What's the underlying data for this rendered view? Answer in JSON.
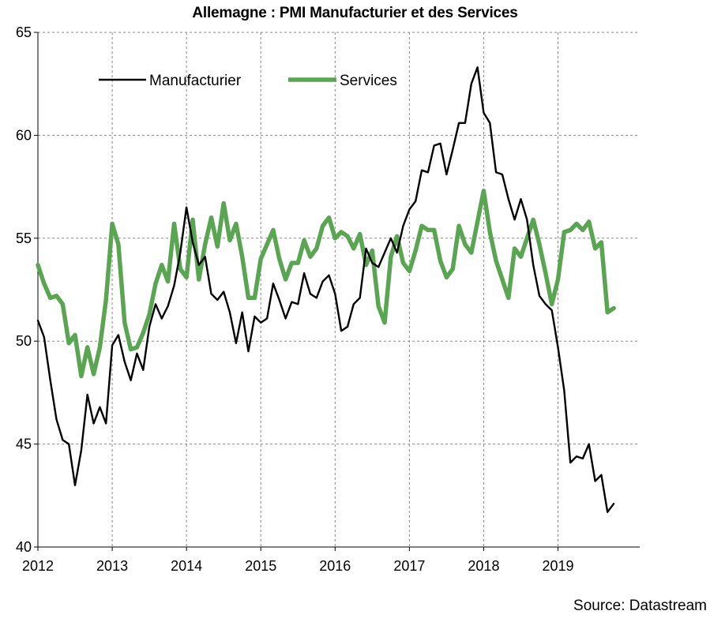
{
  "chart_data": {
    "type": "line",
    "title": "Allemagne : PMI Manufacturier et des Services",
    "source": "Source: Datastream",
    "xlabel": "",
    "ylabel": "",
    "ylim": [
      40,
      65
    ],
    "xlim": [
      2012,
      2020.1
    ],
    "y_ticks": [
      "40",
      "45",
      "50",
      "55",
      "60",
      "65"
    ],
    "x_ticks": [
      "2012",
      "2013",
      "2014",
      "2015",
      "2016",
      "2017",
      "2018",
      "2019"
    ],
    "grid": true,
    "legend_position": "top-left",
    "series": [
      {
        "name": "Manufacturier",
        "color": "#000000",
        "values": [
          51.0,
          50.2,
          48.1,
          46.2,
          45.2,
          45.0,
          43.0,
          44.7,
          47.4,
          46.0,
          46.8,
          46.0,
          49.8,
          50.3,
          49.0,
          48.1,
          49.4,
          48.6,
          50.7,
          51.8,
          51.1,
          51.7,
          52.7,
          54.3,
          56.5,
          54.8,
          53.7,
          54.1,
          52.3,
          52.0,
          52.4,
          51.4,
          49.9,
          51.4,
          49.5,
          51.2,
          50.9,
          51.1,
          52.8,
          52.0,
          51.1,
          51.9,
          51.8,
          53.3,
          52.3,
          52.1,
          52.9,
          53.2,
          52.3,
          50.5,
          50.7,
          51.8,
          52.1,
          54.5,
          53.8,
          53.6,
          54.3,
          55.0,
          54.3,
          55.6,
          56.4,
          56.8,
          58.3,
          58.2,
          59.5,
          59.6,
          58.1,
          59.3,
          60.6,
          60.6,
          62.5,
          63.3,
          61.1,
          60.6,
          58.2,
          58.1,
          56.9,
          55.9,
          56.9,
          55.9,
          53.7,
          52.2,
          51.8,
          51.5,
          49.7,
          47.6,
          44.1,
          44.4,
          44.3,
          45.0,
          43.2,
          43.5,
          41.7,
          42.1
        ]
      },
      {
        "name": "Services",
        "color": "#5aa552",
        "values": [
          53.7,
          52.8,
          52.1,
          52.2,
          51.8,
          49.9,
          50.3,
          48.3,
          49.7,
          48.4,
          49.7,
          52.0,
          55.7,
          54.7,
          50.9,
          49.6,
          49.7,
          50.4,
          51.3,
          52.8,
          53.7,
          52.9,
          55.7,
          53.5,
          53.1,
          55.9,
          53.0,
          54.7,
          56.0,
          54.6,
          56.7,
          54.9,
          55.7,
          54.1,
          52.1,
          52.1,
          54.0,
          54.7,
          55.4,
          54.0,
          53.0,
          53.8,
          53.8,
          54.9,
          54.1,
          54.5,
          55.6,
          56.0,
          55.0,
          55.3,
          55.1,
          54.5,
          55.2,
          53.7,
          54.4,
          51.7,
          50.9,
          54.1,
          55.1,
          53.8,
          53.4,
          54.4,
          55.6,
          55.4,
          55.4,
          53.9,
          53.1,
          53.5,
          55.6,
          54.7,
          54.3,
          55.8,
          57.3,
          55.3,
          53.9,
          53.0,
          52.1,
          54.5,
          54.1,
          55.0,
          55.9,
          54.7,
          53.3,
          51.8,
          53.0,
          55.3,
          55.4,
          55.7,
          55.4,
          55.8,
          54.5,
          54.8,
          51.4,
          51.6
        ]
      }
    ]
  }
}
